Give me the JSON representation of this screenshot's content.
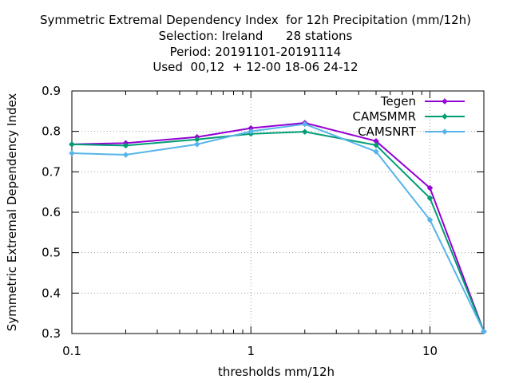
{
  "chart_data": {
    "type": "line",
    "title_lines": [
      "Symmetric Extremal Dependency Index  for 12h Precipitation (mm/12h)",
      "Selection: Ireland      28 stations",
      "Period: 20191101-20191114",
      "Used  00,12  + 12-00 18-06 24-12"
    ],
    "xlabel": "thresholds mm/12h",
    "ylabel": "Symmetric Extremal Dependency Index",
    "x_scale": "log",
    "xlim": [
      0.1,
      20
    ],
    "ylim": [
      0.3,
      0.9
    ],
    "x_ticks": [
      {
        "value": 0.1,
        "label": "0.1"
      },
      {
        "value": 1,
        "label": "1"
      },
      {
        "value": 10,
        "label": "10"
      }
    ],
    "y_ticks": [
      {
        "value": 0.3,
        "label": "0.3"
      },
      {
        "value": 0.4,
        "label": "0.4"
      },
      {
        "value": 0.5,
        "label": "0.5"
      },
      {
        "value": 0.6,
        "label": "0.6"
      },
      {
        "value": 0.7,
        "label": "0.7"
      },
      {
        "value": 0.8,
        "label": "0.8"
      },
      {
        "value": 0.9,
        "label": "0.9"
      }
    ],
    "grid": true,
    "legend_position": "top-right",
    "x": [
      0.1,
      0.2,
      0.5,
      1,
      2,
      5,
      10,
      20
    ],
    "series": [
      {
        "name": "Tegen",
        "color": "#9400d3",
        "values": [
          0.768,
          0.771,
          0.786,
          0.808,
          0.821,
          0.776,
          0.66,
          0.305
        ]
      },
      {
        "name": "CAMSMMR",
        "color": "#009e73",
        "values": [
          0.768,
          0.765,
          0.78,
          0.794,
          0.799,
          0.766,
          0.635,
          0.305
        ]
      },
      {
        "name": "CAMSNRT",
        "color": "#56b4e9",
        "values": [
          0.746,
          0.742,
          0.768,
          0.8,
          0.818,
          0.75,
          0.581,
          0.305
        ]
      }
    ]
  }
}
